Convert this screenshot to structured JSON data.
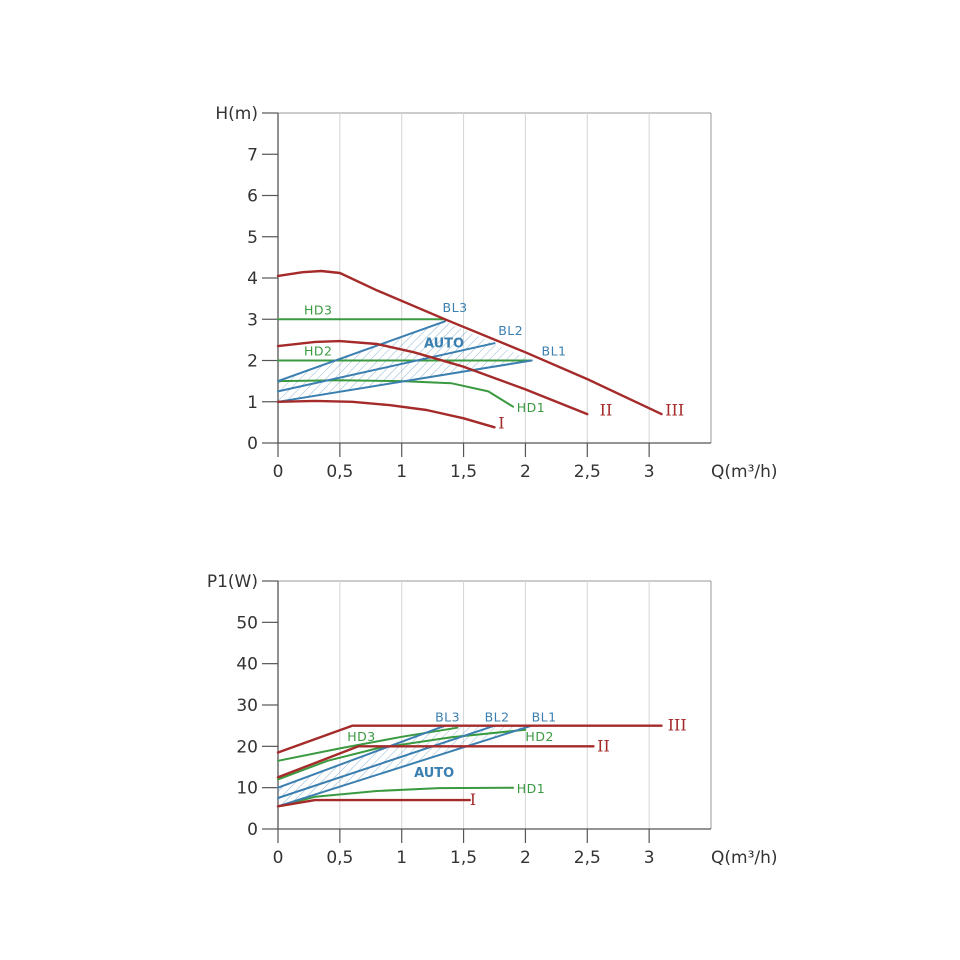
{
  "colors": {
    "red": "#a52a2a",
    "green": "#3a9a40",
    "blue": "#3b7fb0",
    "axis": "#555555",
    "frame": "#999999",
    "text": "#333333"
  },
  "chart_data": [
    {
      "type": "line",
      "ylabel": "H(m)",
      "xlabel": "Q(m³/h)",
      "xlim": [
        0,
        3.5
      ],
      "ylim": [
        0,
        8
      ],
      "xticks": [
        0,
        0.5,
        1,
        1.5,
        2,
        2.5,
        3
      ],
      "xtick_labels": [
        "0",
        "0,5",
        "1",
        "1,5",
        "2",
        "2,5",
        "3"
      ],
      "yticks": [
        0,
        1,
        2,
        3,
        4,
        5,
        6,
        7
      ],
      "ytick_labels": [
        "0",
        "1",
        "2",
        "3",
        "4",
        "5",
        "6",
        "7"
      ],
      "grid": "vertical",
      "series": [
        {
          "name": "I",
          "color": "red",
          "label_at": [
            1.78,
            0.35
          ],
          "points": [
            [
              0,
              1.0
            ],
            [
              0.3,
              1.02
            ],
            [
              0.6,
              1.0
            ],
            [
              0.9,
              0.92
            ],
            [
              1.2,
              0.8
            ],
            [
              1.5,
              0.6
            ],
            [
              1.75,
              0.38
            ]
          ]
        },
        {
          "name": "II",
          "color": "red",
          "label_at": [
            2.6,
            0.67
          ],
          "points": [
            [
              0,
              2.35
            ],
            [
              0.3,
              2.45
            ],
            [
              0.5,
              2.47
            ],
            [
              0.8,
              2.4
            ],
            [
              1.1,
              2.2
            ],
            [
              1.5,
              1.85
            ],
            [
              2.0,
              1.3
            ],
            [
              2.5,
              0.7
            ]
          ]
        },
        {
          "name": "III",
          "color": "red",
          "label_at": [
            3.13,
            0.67
          ],
          "points": [
            [
              0,
              4.05
            ],
            [
              0.2,
              4.14
            ],
            [
              0.35,
              4.17
            ],
            [
              0.5,
              4.12
            ],
            [
              0.8,
              3.7
            ],
            [
              1.35,
              3.0
            ],
            [
              2.0,
              2.2
            ],
            [
              2.5,
              1.55
            ],
            [
              3.1,
              0.7
            ]
          ]
        },
        {
          "name": "HD1",
          "color": "green",
          "label_at": [
            1.93,
            0.75
          ],
          "points": [
            [
              0,
              1.5
            ],
            [
              0.5,
              1.52
            ],
            [
              1.0,
              1.5
            ],
            [
              1.4,
              1.45
            ],
            [
              1.7,
              1.25
            ],
            [
              1.9,
              0.88
            ]
          ]
        },
        {
          "name": "HD2",
          "color": "green",
          "label_at": [
            0.21,
            2.12
          ],
          "points": [
            [
              0,
              2.0
            ],
            [
              2.05,
              2.0
            ]
          ]
        },
        {
          "name": "HD3",
          "color": "green",
          "label_at": [
            0.21,
            3.12
          ],
          "points": [
            [
              0,
              3.0
            ],
            [
              1.35,
              3.0
            ]
          ]
        },
        {
          "name": "BL1",
          "color": "blue",
          "label_at": [
            2.13,
            2.12
          ],
          "points": [
            [
              0,
              1.0
            ],
            [
              2.05,
              2.0
            ]
          ]
        },
        {
          "name": "BL2",
          "color": "blue",
          "label_at": [
            1.78,
            2.62
          ],
          "points": [
            [
              0,
              1.25
            ],
            [
              1.75,
              2.42
            ]
          ]
        },
        {
          "name": "BL3",
          "color": "blue",
          "label_at": [
            1.33,
            3.17
          ],
          "points": [
            [
              0,
              1.5
            ],
            [
              1.35,
              2.95
            ]
          ]
        }
      ],
      "auto_region": {
        "label": "AUTO",
        "label_at": [
          1.18,
          2.32
        ],
        "color": "blue",
        "bounds": [
          [
            0,
            1.0
          ],
          [
            2.05,
            2.0
          ],
          [
            1.35,
            2.95
          ],
          [
            0,
            1.5
          ]
        ]
      }
    },
    {
      "type": "line",
      "ylabel": "P1(W)",
      "xlabel": "Q(m³/h)",
      "xlim": [
        0,
        3.5
      ],
      "ylim": [
        0,
        60
      ],
      "xticks": [
        0,
        0.5,
        1,
        1.5,
        2,
        2.5,
        3
      ],
      "xtick_labels": [
        "0",
        "0,5",
        "1",
        "1,5",
        "2",
        "2,5",
        "3"
      ],
      "yticks": [
        0,
        10,
        20,
        30,
        40,
        50
      ],
      "ytick_labels": [
        "0",
        "10",
        "20",
        "30",
        "40",
        "50"
      ],
      "grid": "vertical",
      "series": [
        {
          "name": "I",
          "color": "red",
          "label_at": [
            1.55,
            5.8
          ],
          "points": [
            [
              0,
              5.5
            ],
            [
              0.3,
              7.0
            ],
            [
              0.6,
              7.0
            ],
            [
              1.55,
              7.0
            ]
          ]
        },
        {
          "name": "II",
          "color": "red",
          "label_at": [
            2.58,
            18.8
          ],
          "points": [
            [
              0,
              12.5
            ],
            [
              0.65,
              20.0
            ],
            [
              2.55,
              20.0
            ]
          ]
        },
        {
          "name": "III",
          "color": "red",
          "label_at": [
            3.15,
            23.8
          ],
          "points": [
            [
              0,
              18.5
            ],
            [
              0.6,
              25.0
            ],
            [
              3.1,
              25.0
            ]
          ]
        },
        {
          "name": "HD1",
          "color": "green",
          "label_at": [
            1.93,
            8.7
          ],
          "points": [
            [
              0,
              5.5
            ],
            [
              0.3,
              7.8
            ],
            [
              0.8,
              9.2
            ],
            [
              1.3,
              9.9
            ],
            [
              1.9,
              10.0
            ]
          ]
        },
        {
          "name": "HD2",
          "color": "green",
          "label_at": [
            2.0,
            21.3
          ],
          "points": [
            [
              0,
              12.0
            ],
            [
              0.4,
              16.5
            ],
            [
              0.8,
              19.5
            ],
            [
              1.4,
              22.2
            ],
            [
              2.0,
              24.0
            ]
          ]
        },
        {
          "name": "HD3",
          "color": "green",
          "label_at": [
            0.56,
            21.3
          ],
          "points": [
            [
              0,
              16.5
            ],
            [
              0.5,
              19.5
            ],
            [
              1.0,
              22.3
            ],
            [
              1.45,
              24.5
            ]
          ]
        },
        {
          "name": "BL1",
          "color": "blue",
          "label_at": [
            2.05,
            26.0
          ],
          "points": [
            [
              0,
              5.5
            ],
            [
              2.05,
              25.0
            ]
          ]
        },
        {
          "name": "BL2",
          "color": "blue",
          "label_at": [
            1.67,
            26.0
          ],
          "points": [
            [
              0,
              7.5
            ],
            [
              1.75,
              25.0
            ]
          ]
        },
        {
          "name": "BL3",
          "color": "blue",
          "label_at": [
            1.27,
            26.0
          ],
          "points": [
            [
              0,
              10.0
            ],
            [
              1.35,
              25.0
            ]
          ]
        }
      ],
      "auto_region": {
        "label": "AUTO",
        "label_at": [
          1.1,
          12.6
        ],
        "color": "blue",
        "bounds": [
          [
            0,
            5.5
          ],
          [
            2.05,
            25.0
          ],
          [
            1.35,
            25.0
          ],
          [
            0,
            10.0
          ]
        ]
      }
    }
  ]
}
